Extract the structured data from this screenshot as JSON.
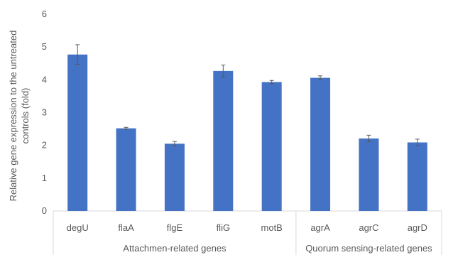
{
  "chart_data": {
    "type": "bar",
    "title": "",
    "ylabel_lines": [
      "Relative gene expression to the untreated",
      "controls  (fold)"
    ],
    "xlabel": "",
    "ylim": [
      0,
      6
    ],
    "yticks": [
      0,
      1,
      2,
      3,
      4,
      5,
      6
    ],
    "grid": false,
    "legend": "none",
    "bar_color": "#4472C4",
    "categories": [
      "degU",
      "flaA",
      "flgE",
      "fliG",
      "motB",
      "agrA",
      "agrC",
      "agrD"
    ],
    "series": [
      {
        "values": [
          4.77,
          2.52,
          2.05,
          4.27,
          3.93,
          4.06,
          2.21,
          2.09
        ],
        "errors": [
          0.3,
          0.03,
          0.07,
          0.18,
          0.05,
          0.06,
          0.1,
          0.1
        ]
      }
    ],
    "groups": [
      {
        "label": "Attachmen-related genes",
        "categories": [
          "degU",
          "flaA",
          "flgE",
          "fliG",
          "motB"
        ]
      },
      {
        "label": "Quorum sensing-related genes",
        "categories": [
          "agrA",
          "agrC",
          "agrD"
        ]
      }
    ]
  }
}
